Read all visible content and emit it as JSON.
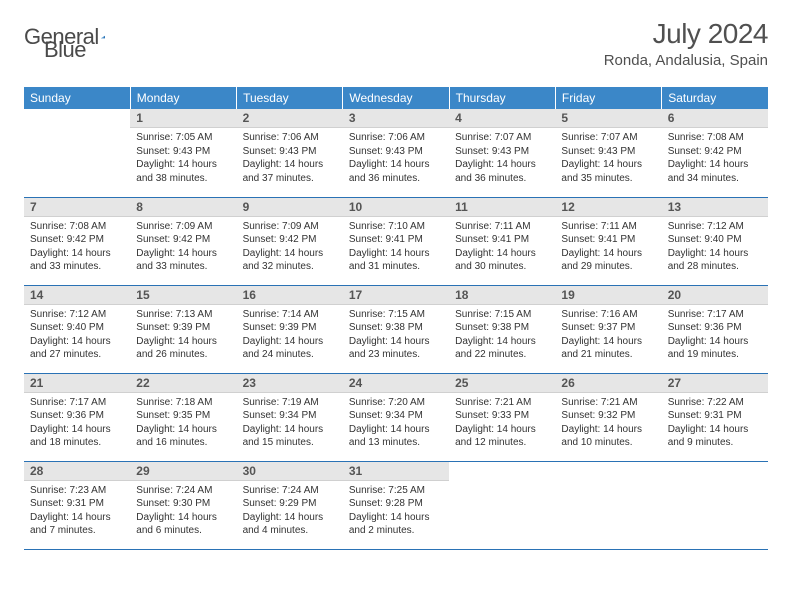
{
  "brand": {
    "word1": "General",
    "word2": "Blue"
  },
  "title": "July 2024",
  "location": "Ronda, Andalusia, Spain",
  "colors": {
    "header_bg": "#3b87c8",
    "header_fg": "#ffffff",
    "divider": "#2a72b5",
    "daynum_bg": "#e6e6e6",
    "daynum_fg": "#555555",
    "text": "#333333",
    "brand_blue": "#2a72b5",
    "page_bg": "#ffffff"
  },
  "typography": {
    "title_fontsize": 28,
    "location_fontsize": 15,
    "header_fontsize": 12,
    "daynum_fontsize": 12,
    "body_fontsize": 10
  },
  "weekdays": [
    "Sunday",
    "Monday",
    "Tuesday",
    "Wednesday",
    "Thursday",
    "Friday",
    "Saturday"
  ],
  "layout": {
    "lead_blanks": 1,
    "trail_blanks": 3,
    "rows": 5
  },
  "days": [
    {
      "n": "1",
      "sunrise": "7:05 AM",
      "sunset": "9:43 PM",
      "daylight": "14 hours and 38 minutes."
    },
    {
      "n": "2",
      "sunrise": "7:06 AM",
      "sunset": "9:43 PM",
      "daylight": "14 hours and 37 minutes."
    },
    {
      "n": "3",
      "sunrise": "7:06 AM",
      "sunset": "9:43 PM",
      "daylight": "14 hours and 36 minutes."
    },
    {
      "n": "4",
      "sunrise": "7:07 AM",
      "sunset": "9:43 PM",
      "daylight": "14 hours and 36 minutes."
    },
    {
      "n": "5",
      "sunrise": "7:07 AM",
      "sunset": "9:43 PM",
      "daylight": "14 hours and 35 minutes."
    },
    {
      "n": "6",
      "sunrise": "7:08 AM",
      "sunset": "9:42 PM",
      "daylight": "14 hours and 34 minutes."
    },
    {
      "n": "7",
      "sunrise": "7:08 AM",
      "sunset": "9:42 PM",
      "daylight": "14 hours and 33 minutes."
    },
    {
      "n": "8",
      "sunrise": "7:09 AM",
      "sunset": "9:42 PM",
      "daylight": "14 hours and 33 minutes."
    },
    {
      "n": "9",
      "sunrise": "7:09 AM",
      "sunset": "9:42 PM",
      "daylight": "14 hours and 32 minutes."
    },
    {
      "n": "10",
      "sunrise": "7:10 AM",
      "sunset": "9:41 PM",
      "daylight": "14 hours and 31 minutes."
    },
    {
      "n": "11",
      "sunrise": "7:11 AM",
      "sunset": "9:41 PM",
      "daylight": "14 hours and 30 minutes."
    },
    {
      "n": "12",
      "sunrise": "7:11 AM",
      "sunset": "9:41 PM",
      "daylight": "14 hours and 29 minutes."
    },
    {
      "n": "13",
      "sunrise": "7:12 AM",
      "sunset": "9:40 PM",
      "daylight": "14 hours and 28 minutes."
    },
    {
      "n": "14",
      "sunrise": "7:12 AM",
      "sunset": "9:40 PM",
      "daylight": "14 hours and 27 minutes."
    },
    {
      "n": "15",
      "sunrise": "7:13 AM",
      "sunset": "9:39 PM",
      "daylight": "14 hours and 26 minutes."
    },
    {
      "n": "16",
      "sunrise": "7:14 AM",
      "sunset": "9:39 PM",
      "daylight": "14 hours and 24 minutes."
    },
    {
      "n": "17",
      "sunrise": "7:15 AM",
      "sunset": "9:38 PM",
      "daylight": "14 hours and 23 minutes."
    },
    {
      "n": "18",
      "sunrise": "7:15 AM",
      "sunset": "9:38 PM",
      "daylight": "14 hours and 22 minutes."
    },
    {
      "n": "19",
      "sunrise": "7:16 AM",
      "sunset": "9:37 PM",
      "daylight": "14 hours and 21 minutes."
    },
    {
      "n": "20",
      "sunrise": "7:17 AM",
      "sunset": "9:36 PM",
      "daylight": "14 hours and 19 minutes."
    },
    {
      "n": "21",
      "sunrise": "7:17 AM",
      "sunset": "9:36 PM",
      "daylight": "14 hours and 18 minutes."
    },
    {
      "n": "22",
      "sunrise": "7:18 AM",
      "sunset": "9:35 PM",
      "daylight": "14 hours and 16 minutes."
    },
    {
      "n": "23",
      "sunrise": "7:19 AM",
      "sunset": "9:34 PM",
      "daylight": "14 hours and 15 minutes."
    },
    {
      "n": "24",
      "sunrise": "7:20 AM",
      "sunset": "9:34 PM",
      "daylight": "14 hours and 13 minutes."
    },
    {
      "n": "25",
      "sunrise": "7:21 AM",
      "sunset": "9:33 PM",
      "daylight": "14 hours and 12 minutes."
    },
    {
      "n": "26",
      "sunrise": "7:21 AM",
      "sunset": "9:32 PM",
      "daylight": "14 hours and 10 minutes."
    },
    {
      "n": "27",
      "sunrise": "7:22 AM",
      "sunset": "9:31 PM",
      "daylight": "14 hours and 9 minutes."
    },
    {
      "n": "28",
      "sunrise": "7:23 AM",
      "sunset": "9:31 PM",
      "daylight": "14 hours and 7 minutes."
    },
    {
      "n": "29",
      "sunrise": "7:24 AM",
      "sunset": "9:30 PM",
      "daylight": "14 hours and 6 minutes."
    },
    {
      "n": "30",
      "sunrise": "7:24 AM",
      "sunset": "9:29 PM",
      "daylight": "14 hours and 4 minutes."
    },
    {
      "n": "31",
      "sunrise": "7:25 AM",
      "sunset": "9:28 PM",
      "daylight": "14 hours and 2 minutes."
    }
  ],
  "labels": {
    "sunrise": "Sunrise:",
    "sunset": "Sunset:",
    "daylight": "Daylight:"
  }
}
